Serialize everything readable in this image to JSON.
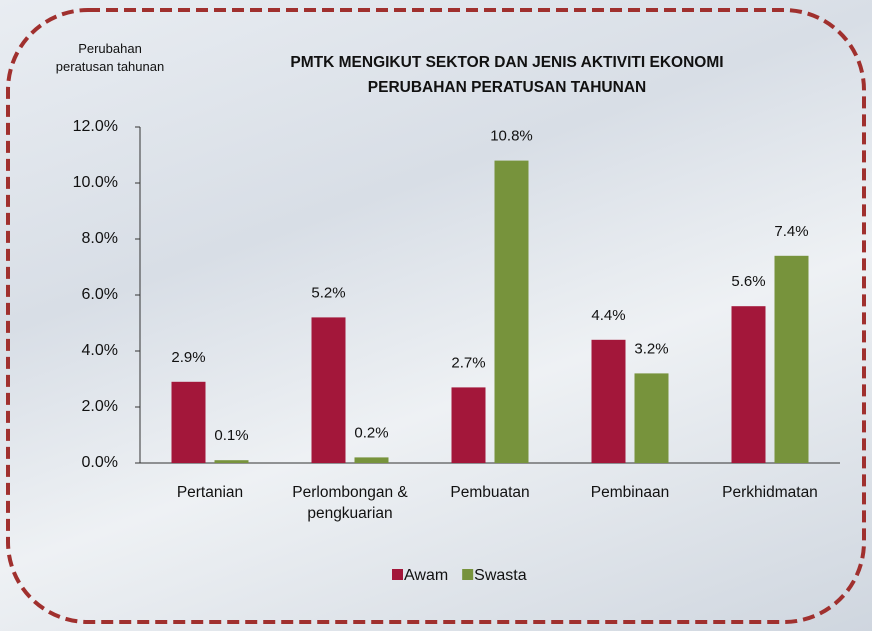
{
  "chart_data": {
    "type": "bar",
    "title": "PMTK MENGIKUT SEKTOR DAN JENIS AKTIVITI EKONOMI",
    "subtitle": "PERUBAHAN PERATUSAN TAHUNAN",
    "y_label": "Perubahan peratusan tahunan",
    "categories": [
      "Pertanian",
      "Perlombongan & pengkuarian",
      "Pembuatan",
      "Pembinaan",
      "Perkhidmatan"
    ],
    "series": [
      {
        "name": "Awam",
        "color": "#a3173a",
        "values": [
          2.9,
          5.2,
          2.7,
          4.4,
          5.6
        ],
        "value_labels": [
          "2.9%",
          "5.2%",
          "2.7%",
          "4.4%",
          "5.6%"
        ]
      },
      {
        "name": "Swasta",
        "color": "#77933c",
        "values": [
          0.1,
          0.2,
          10.8,
          3.2,
          7.4
        ],
        "value_labels": [
          "0.1%",
          "0.2%",
          "10.8%",
          "3.2%",
          "7.4%"
        ]
      }
    ],
    "ylim": [
      0,
      12
    ],
    "yticks": [
      {
        "value": 0,
        "label": "0.0%"
      },
      {
        "value": 2,
        "label": "2.0%"
      },
      {
        "value": 4,
        "label": "4.0%"
      },
      {
        "value": 6,
        "label": "6.0%"
      },
      {
        "value": 8,
        "label": "8.0%"
      },
      {
        "value": 10,
        "label": "10.0%"
      },
      {
        "value": 12,
        "label": "12.0%"
      }
    ],
    "legend": "bottom"
  }
}
